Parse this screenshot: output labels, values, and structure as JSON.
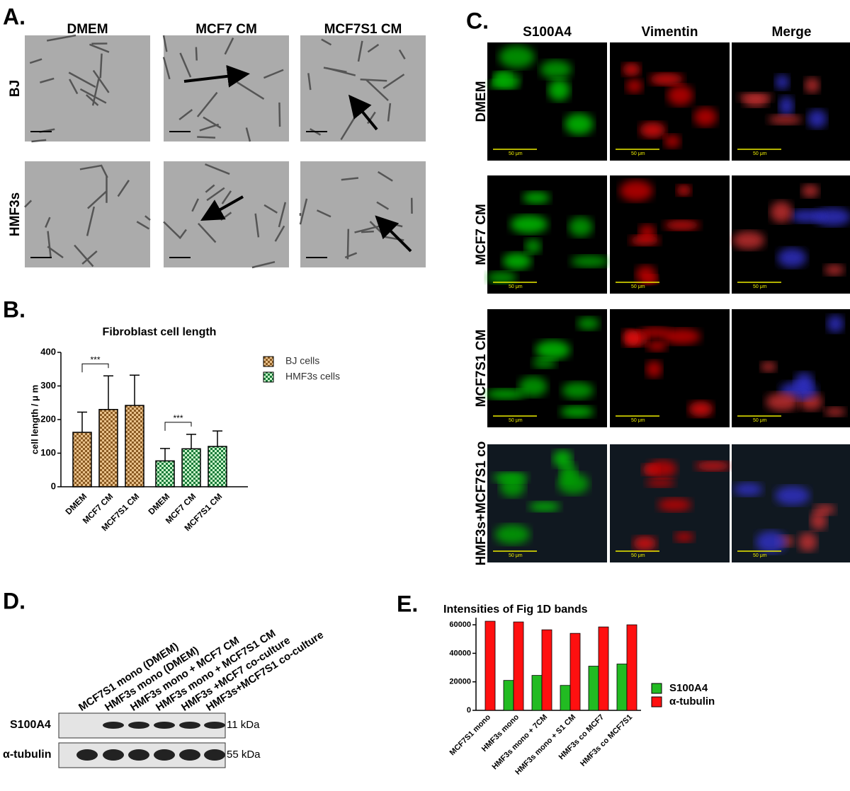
{
  "panels": {
    "a": "A.",
    "b": "B.",
    "c": "C.",
    "d": "D.",
    "e": "E."
  },
  "panel_a": {
    "columns": [
      "DMEM",
      "MCF7 CM",
      "MCF7S1 CM"
    ],
    "rows": [
      "BJ",
      "HMF3s"
    ]
  },
  "panel_c": {
    "columns": [
      "S100A4",
      "Vimentin",
      "Merge"
    ],
    "rows": [
      "DMEM",
      "MCF7 CM",
      "MCF7S1 CM",
      "HMF3s+MCF7S1 co"
    ],
    "scale_label": "50 μm"
  },
  "panel_d": {
    "lanes": [
      "MCF7S1 mono (DMEM)",
      "HMF3s mono (DMEM)",
      "HMF3s mono + MCF7 CM",
      "HMF3s mono + MCF7S1 CM",
      "HMF3s +MCF7 co-culture",
      "HMF3s+MCF7S1 co-culture"
    ],
    "rows": [
      "S100A4",
      "α-tubulin"
    ],
    "sizes": [
      "11 kDa",
      "55 kDa"
    ]
  },
  "chart_data": [
    {
      "type": "bar",
      "title": "Fibroblast cell length",
      "y_label": "cell length / μ m",
      "categories": [
        "DMEM",
        "MCF7 CM",
        "MCF7S1 CM"
      ],
      "series": [
        {
          "name": "BJ cells",
          "color": "#d9a866",
          "values": [
            162,
            230,
            242
          ],
          "errors": [
            60,
            100,
            90
          ]
        },
        {
          "name": "HMF3s cells",
          "color": "#9be39b",
          "values": [
            77,
            113,
            120
          ],
          "errors": [
            37,
            43,
            46
          ]
        }
      ],
      "ylim": [
        0,
        400
      ],
      "yticks": [
        0,
        100,
        200,
        300,
        400
      ],
      "annotations": [
        "***",
        "***"
      ]
    },
    {
      "type": "bar",
      "title": "Intensities of Fig 1D bands",
      "categories": [
        "MCF7S1 mono",
        "HMF3s mono",
        "HMF3s mono + 7CM",
        "HMF3s mono + S1 CM",
        "HMF3s co MCF7",
        "HMF3s co MCF7S1"
      ],
      "series": [
        {
          "name": "S100A4",
          "color": "#22bb22",
          "values": [
            0,
            21000,
            24500,
            17500,
            31000,
            32500
          ]
        },
        {
          "name": "α-tubulin",
          "color": "#ff1010",
          "values": [
            62500,
            62000,
            56500,
            54000,
            58500,
            60000
          ]
        }
      ],
      "ylim": [
        0,
        65000
      ],
      "yticks": [
        0,
        20000,
        40000,
        60000
      ]
    }
  ]
}
